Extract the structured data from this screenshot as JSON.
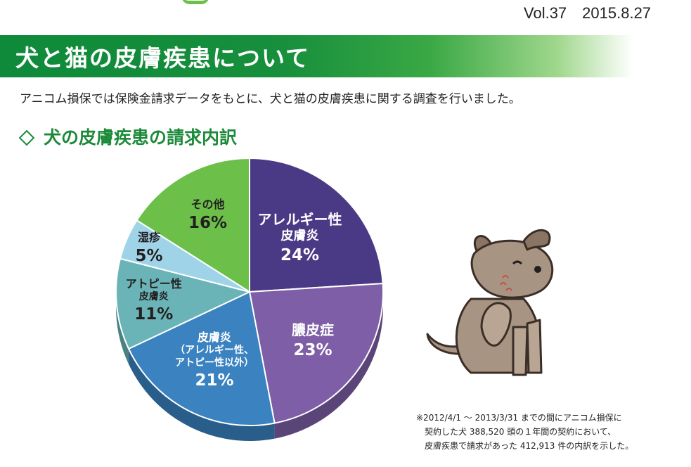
{
  "header": {
    "volume": "Vol.37",
    "date": "2015.8.27",
    "title": "犬と猫の皮膚疾患について"
  },
  "intro": "アニコム損保では保険金請求データをもとに、犬と猫の皮膚疾患に関する調査を行いました。",
  "section": {
    "title": "犬の皮膚疾患の請求内訳"
  },
  "chart_data": {
    "type": "pie",
    "title": "犬の皮膚疾患の請求内訳",
    "slices": [
      {
        "label_lines": [
          "アレルギー性",
          "皮膚炎"
        ],
        "value": 24,
        "display": "24%",
        "color": "#4a3a86"
      },
      {
        "label_lines": [
          "膿皮症"
        ],
        "value": 23,
        "display": "23%",
        "color": "#7e5ea6"
      },
      {
        "label_lines": [
          "皮膚炎",
          "（アレルギー性、",
          "アトピー性以外）"
        ],
        "value": 21,
        "display": "21%",
        "color": "#3b82c0"
      },
      {
        "label_lines": [
          "アトピー性",
          "皮膚炎"
        ],
        "value": 11,
        "display": "11%",
        "color": "#6ab3b6"
      },
      {
        "label_lines": [
          "湿疹"
        ],
        "value": 5,
        "display": "5%",
        "color": "#9fd3e8"
      },
      {
        "label_lines": [
          "その他"
        ],
        "value": 16,
        "display": "16%",
        "color": "#6cc04a"
      }
    ]
  },
  "footnote": {
    "lines": [
      "※2012/4/1 ～ 2013/3/31 までの間にアニコム損保に",
      "契約した犬 388,520 頭の１年間の契約において、",
      "皮膚疾患で請求があった 412,913 件の内訳を示した。"
    ]
  },
  "illustration": {
    "icon": "scratching-dog-icon"
  }
}
